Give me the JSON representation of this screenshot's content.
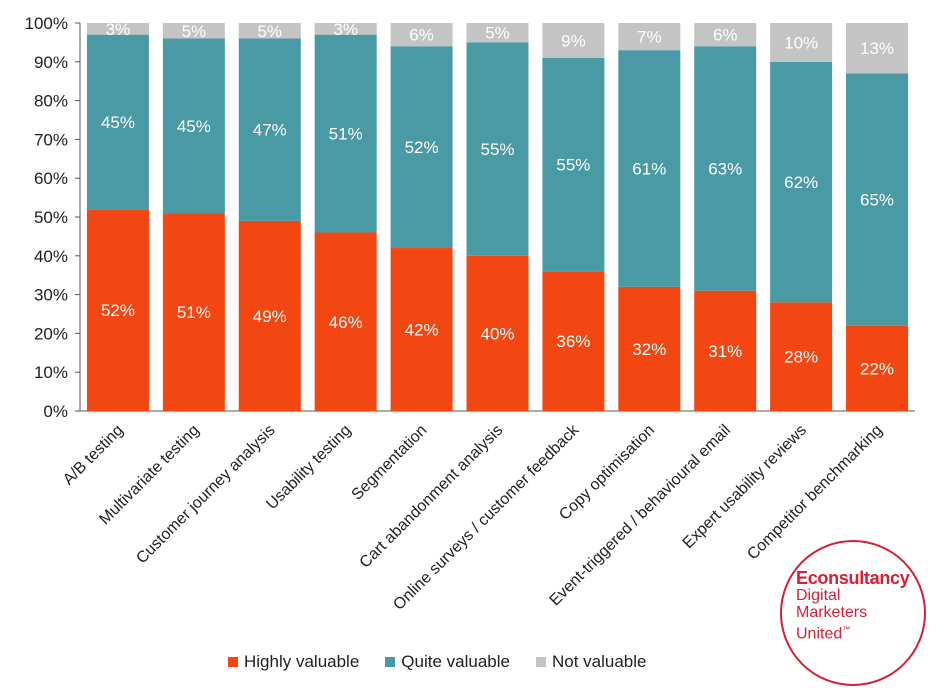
{
  "chart_data": {
    "type": "bar",
    "stacked": true,
    "orientation": "vertical",
    "categories": [
      "A/B testing",
      "Multivariate testing",
      "Customer journey analysis",
      "Usability testing",
      "Segmentation",
      "Cart abandonment analysis",
      "Online surveys / customer feedback",
      "Copy optimisation",
      "Event-triggered / behavioural email",
      "Expert usability reviews",
      "Competitor benchmarking"
    ],
    "series": [
      {
        "name": "Highly valuable",
        "color": "#f24712",
        "values": [
          52,
          51,
          49,
          46,
          42,
          40,
          36,
          32,
          31,
          28,
          22
        ],
        "labels": [
          "52%",
          "51%",
          "49%",
          "46%",
          "42%",
          "40%",
          "36%",
          "32%",
          "31%",
          "28%",
          "22%"
        ]
      },
      {
        "name": "Quite valuable",
        "color": "#4a9aa5",
        "values": [
          45,
          45,
          47,
          51,
          52,
          55,
          55,
          61,
          63,
          62,
          65
        ],
        "labels": [
          "45%",
          "45%",
          "47%",
          "51%",
          "52%",
          "55%",
          "55%",
          "61%",
          "63%",
          "62%",
          "65%"
        ]
      },
      {
        "name": "Not valuable",
        "color": "#c4c4c4",
        "values": [
          3,
          5,
          5,
          3,
          6,
          5,
          9,
          7,
          6,
          10,
          13
        ],
        "labels": [
          "3%",
          "5%",
          "5%",
          "3%",
          "6%",
          "5%",
          "9%",
          "7%",
          "6%",
          "10%",
          "13%"
        ]
      }
    ],
    "yticks": [
      "0%",
      "10%",
      "20%",
      "30%",
      "40%",
      "50%",
      "60%",
      "70%",
      "80%",
      "90%",
      "100%"
    ],
    "ylim": [
      0,
      100
    ],
    "grid": false,
    "legend": "bottom",
    "title": "",
    "xlabel": "",
    "ylabel": ""
  },
  "logo": {
    "brand": "Econsultancy",
    "lines": [
      "Digital",
      "Marketers",
      "United"
    ],
    "tm": "™"
  }
}
